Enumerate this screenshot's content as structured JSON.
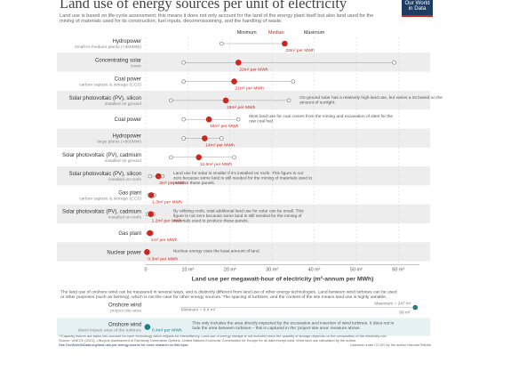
{
  "header": {
    "title": "Land use of energy sources per unit of electricity",
    "subtitle": "Land use is based on life-cycle assessment; this means it does not only account for the land of the energy plant itself but also land used for the mining of materials used for its construction, fuel inputs, decommissioning, and the handling of waste.",
    "logo_line1": "Our World",
    "logo_line2": "in Data"
  },
  "colors": {
    "accent": "#ce261e",
    "band": "#ededed",
    "onshore": "#1c7f86",
    "logo": "#1d3d63"
  },
  "chart_data": {
    "type": "scatter",
    "subtype": "range-dot",
    "legend": {
      "min": "Minimum",
      "median": "Median",
      "max": "Maximum"
    },
    "xlabel": "Land use per megawatt-hour of electricity (m²-annum per MWh)",
    "xticks": [
      "0",
      "10 m²",
      "20 m²",
      "30 m²",
      "40 m²",
      "50 m²",
      "60 m²"
    ],
    "xlim": [
      0,
      65
    ],
    "series": [
      {
        "label": "Hydropower",
        "sub": "small-to-medium plants (<360MW)",
        "min": 18,
        "median": 33,
        "max": 33,
        "median_label": "33m² per MWh",
        "note": ""
      },
      {
        "label": "Concentrating solar",
        "sub": "tower",
        "min": 9,
        "median": 22,
        "max": 59,
        "median_label": "22m² per MWh",
        "note": ""
      },
      {
        "label": "Coal power",
        "sub": "carbon capture & storage (CCS)",
        "min": 9,
        "median": 21,
        "max": 35,
        "median_label": "21m² per MWh",
        "note": ""
      },
      {
        "label": "Solar photovoltaic (PV), silicon",
        "sub": "installed on ground",
        "min": 6,
        "median": 19,
        "max": 34,
        "median_label": "19m² per MWh",
        "note": "On-ground solar has a relatively high land use, but varies a lot based on the amount of sunlight."
      },
      {
        "label": "Coal power",
        "sub": "",
        "min": 9,
        "median": 15,
        "max": 22,
        "median_label": "15m² per MWh",
        "note": "Most land use for coal comes from the mining and excavation of sites for the raw coal fuel."
      },
      {
        "label": "Hydropower",
        "sub": "large plants (>660MW)",
        "min": 9,
        "median": 14,
        "max": 18,
        "median_label": "14m² per MWh",
        "note": ""
      },
      {
        "label": "Solar photovoltaic (PV), cadmium",
        "sub": "installed on ground",
        "min": 6,
        "median": 12.6,
        "max": 21,
        "median_label": "12.6m² per MWh",
        "note": ""
      },
      {
        "label": "Solar photovoltaic (PV), silicon",
        "sub": "installed on roofs",
        "min": 1,
        "median": 3,
        "max": 4,
        "median_label": "3m² per MWh",
        "note": "Land use for solar is smaller if it's installed on roofs. This figure is not zero because some land is still needed for the mining of materials used to produce these panels."
      },
      {
        "label": "Gas plant",
        "sub": "carbon capture & storage (CCS)",
        "min": 0.8,
        "median": 1.3,
        "max": 2,
        "median_label": "1.3m² per MWh",
        "note": ""
      },
      {
        "label": "Solar photovoltaic (PV), cadmium",
        "sub": "installed on roofs",
        "min": 0.5,
        "median": 1.2,
        "max": 1.8,
        "median_label": "1.2m² per MWh",
        "note": "By utilizing roofs, total additional land use for solar can be small. This figure is not zero because some land is still needed for the mining of materials used to produce these panels."
      },
      {
        "label": "Gas plant",
        "sub": "",
        "min": 0.6,
        "median": 1,
        "max": 1.4,
        "median_label": "1m² per MWh",
        "note": ""
      },
      {
        "label": "Nuclear power",
        "sub": "",
        "min": 0.2,
        "median": 0.3,
        "max": 0.5,
        "median_label": "0.3m² per MWh",
        "note": "Nuclear energy uses the least amount of land."
      }
    ],
    "onshore_intro": "The land use of onshore wind can be measured in several ways, and is distinctly different from land use of other energy technologies. Land between wind turbines can be used for other purposes (such as farming), which is not the case for other energy sources. The spacing of turbines, and the content of the site means land use is highly variable.",
    "onshore": [
      {
        "label": "Onshore wind",
        "sub": "project site area",
        "min": 8.4,
        "median": 99,
        "max": 247,
        "min_label": "Minimum = 8.4 m²",
        "max_label": "Maximum = 247 m²",
        "median_label": "99 m²"
      },
      {
        "label": "Onshore wind",
        "sub": "direct impact area of the turbines",
        "median": 0.4,
        "median_label": "0.4m² per MWh",
        "note": "This only includes the area directly impacted by the excavation and insertion of wind turbines. It does not include the area between turbines – this is captured in the 'project site area' measure above."
      }
    ]
  },
  "footer": {
    "notes": "**Capacity factors are taken into account for each technology which adjusts for intermittency. Land use of energy storage is not included since the quantity of storage depends on the composition of the electricity mix.",
    "source": "Source: UNECE (2021); Lifecycle Assessment of Electricity Generation Options. United Nations Economic Commission for Europe for all data except wind. Wind land use calculated by the author.",
    "more": "See OurWorldInData.org/land-use-per-energy-source for more research on this topic.",
    "license": "Licensed under CC-BY by the author Hannah Ritchie."
  }
}
